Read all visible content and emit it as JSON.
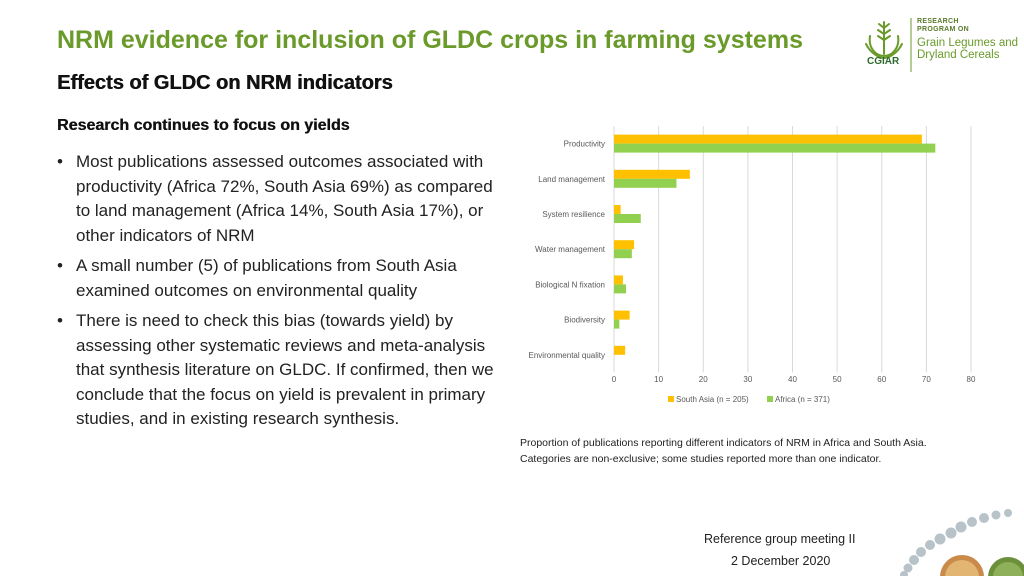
{
  "slide": {
    "title": "NRM evidence for inclusion of GLDC crops in farming systems",
    "subtitle": "Effects of GLDC on NRM indicators",
    "section_heading": "Research continues to focus on yields",
    "bullets": [
      "Most publications assessed outcomes associated with productivity (Africa 72%, South  Asia 69%) as compared to land management (Africa 14%, South Asia 17%), or other indicators of NRM",
      "A small number (5) of publications from South Asia examined outcomes on environmental quality",
      "There is need to check this bias (towards yield) by assessing other systematic reviews and meta-analysis that synthesis literature on GLDC. If confirmed, then we conclude that the focus on yield is prevalent in primary studies, and in existing research synthesis."
    ],
    "caption_lines": [
      "Proportion of publications reporting different indicators of NRM in Africa and South Asia.",
      "Categories are non-exclusive; some studies reported more than one indicator."
    ],
    "footer": {
      "meeting": "Reference group meeting II",
      "date": "2 December 2020"
    }
  },
  "logo": {
    "caption_line1": "RESEARCH",
    "caption_line2": "PROGRAM ON",
    "name_line1": "Grain Legumes and",
    "name_line2": "Dryland Cereals",
    "org": "CGIAR",
    "icon": "wheat-plant-icon",
    "color": "#6a9a2a"
  },
  "chart_data": {
    "type": "bar",
    "orientation": "horizontal",
    "categories": [
      "Productivity",
      "Land management",
      "System resilience",
      "Water management",
      "Biological N fixation",
      "Biodiversity",
      "Environmental quality"
    ],
    "series": [
      {
        "name": "South Asia (n = 205)",
        "color": "#ffc000",
        "values": [
          69,
          17,
          1.5,
          4.5,
          2,
          3.5,
          2.5
        ]
      },
      {
        "name": "Africa (n = 371)",
        "color": "#92d050",
        "values": [
          72,
          14,
          6,
          4,
          2.7,
          1.2,
          0
        ]
      }
    ],
    "xlim": [
      0,
      80
    ],
    "xticks": [
      "0",
      "10",
      "20",
      "30",
      "40",
      "50",
      "60",
      "70",
      "80"
    ],
    "grid": true,
    "legend_position": "bottom"
  }
}
